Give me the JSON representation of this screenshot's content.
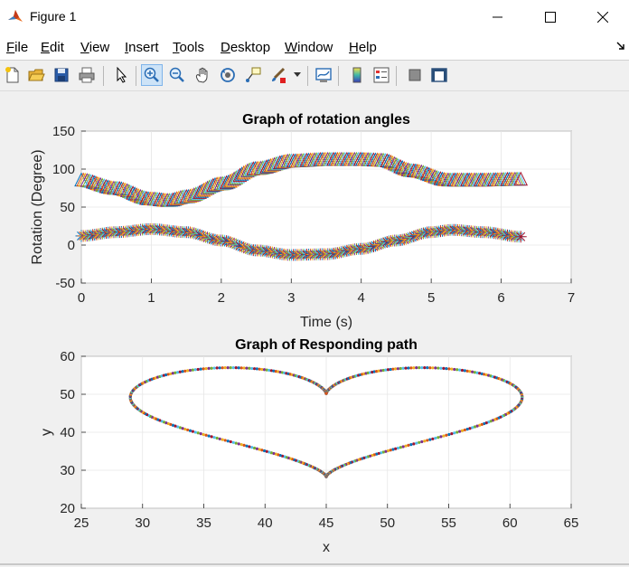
{
  "window": {
    "title": "Figure 1"
  },
  "menu": [
    {
      "first": "F",
      "rest": "ile"
    },
    {
      "first": "E",
      "rest": "dit"
    },
    {
      "first": "V",
      "rest": "iew"
    },
    {
      "first": "I",
      "rest": "nsert"
    },
    {
      "first": "T",
      "rest": "ools"
    },
    {
      "first": "D",
      "rest": "esktop"
    },
    {
      "first": "W",
      "rest": "indow"
    },
    {
      "first": "H",
      "rest": "elp"
    }
  ],
  "toolbar": {
    "icons": [
      "new-figure-icon",
      "open-file-icon",
      "save-icon",
      "print-icon",
      "pointer-icon",
      "zoom-in-icon",
      "zoom-out-icon",
      "pan-hand-icon",
      "rotate-3d-icon",
      "data-cursor-icon",
      "brush-icon",
      "brush-dropdown-icon",
      "link-plot-icon",
      "colorbar-icon",
      "legend-icon",
      "hide-plot-tools-icon",
      "show-plot-tools-icon"
    ],
    "active": "zoom-in-icon"
  },
  "chart_data": [
    {
      "type": "scatter",
      "title": "Graph of rotation angles",
      "xlabel": "Time (s)",
      "ylabel": "Rotation (Degree)",
      "xlim": [
        0,
        7
      ],
      "ylim": [
        -50,
        150
      ],
      "xticks": [
        0,
        1,
        2,
        3,
        4,
        5,
        6,
        7
      ],
      "yticks": [
        -50,
        0,
        50,
        100,
        150
      ],
      "grid": true,
      "series": [
        {
          "marker": "triangle",
          "x": [
            0,
            0.5,
            1.0,
            1.25,
            1.5,
            2.0,
            2.5,
            3.0,
            3.5,
            4.0,
            4.3,
            4.75,
            5.25,
            5.75,
            6.28
          ],
          "y": [
            85,
            74,
            60,
            58,
            63,
            80,
            100,
            110,
            112,
            112,
            111,
            97,
            85,
            85,
            86
          ]
        },
        {
          "marker": "star",
          "x": [
            0,
            0.5,
            1.0,
            1.5,
            2.0,
            2.5,
            3.0,
            3.5,
            4.0,
            4.5,
            5.0,
            5.3,
            5.75,
            6.28
          ],
          "y": [
            12,
            17,
            21,
            17,
            6,
            -7,
            -13,
            -12,
            -5,
            6,
            17,
            20,
            17,
            11
          ]
        }
      ]
    },
    {
      "type": "scatter",
      "title": "Graph of Responding path",
      "xlabel": "x",
      "ylabel": "y",
      "xlim": [
        25,
        65
      ],
      "ylim": [
        20,
        60
      ],
      "xticks": [
        25,
        30,
        35,
        40,
        45,
        50,
        55,
        60,
        65
      ],
      "yticks": [
        20,
        30,
        40,
        50,
        60
      ],
      "grid": true,
      "series": [
        {
          "marker": "dot",
          "shape": "heart",
          "center": [
            45,
            49
          ],
          "x_half_width": 16,
          "y_top": 57,
          "y_notch": 50.2,
          "y_bottom": 28.3
        }
      ]
    }
  ]
}
